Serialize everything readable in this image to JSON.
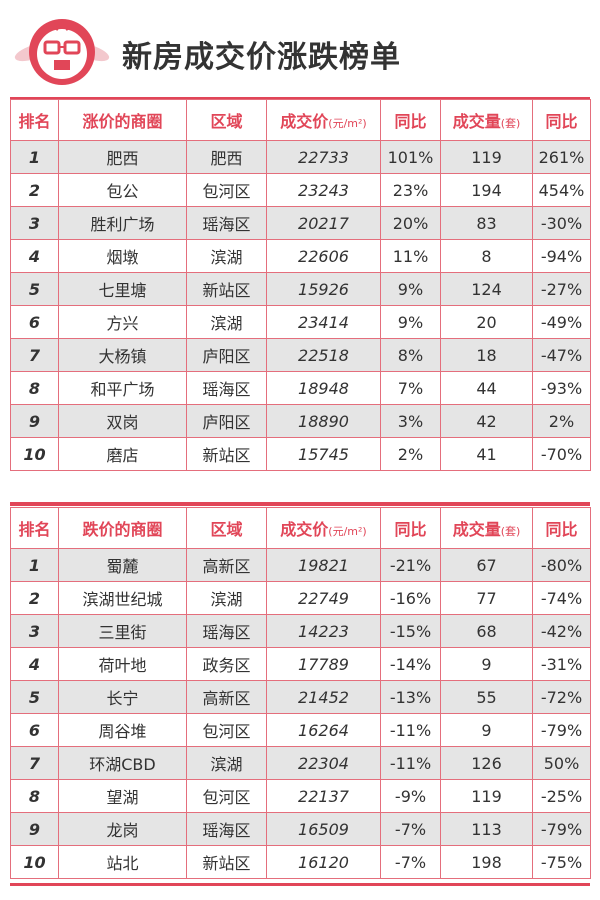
{
  "header": {
    "title": "新房成交价涨跌榜单"
  },
  "rise_table": {
    "columns": [
      "排名",
      "涨价的商圈",
      "区域",
      "成交价",
      "(元/m²)",
      "同比",
      "成交量",
      "(套)",
      "同比"
    ],
    "rows": [
      [
        "1",
        "肥西",
        "肥西",
        "22733",
        "101%",
        "119",
        "261%"
      ],
      [
        "2",
        "包公",
        "包河区",
        "23243",
        "23%",
        "194",
        "454%"
      ],
      [
        "3",
        "胜利广场",
        "瑶海区",
        "20217",
        "20%",
        "83",
        "-30%"
      ],
      [
        "4",
        "烟墩",
        "滨湖",
        "22606",
        "11%",
        "8",
        "-94%"
      ],
      [
        "5",
        "七里塘",
        "新站区",
        "15926",
        "9%",
        "124",
        "-27%"
      ],
      [
        "6",
        "方兴",
        "滨湖",
        "23414",
        "9%",
        "20",
        "-49%"
      ],
      [
        "7",
        "大杨镇",
        "庐阳区",
        "22518",
        "8%",
        "18",
        "-47%"
      ],
      [
        "8",
        "和平广场",
        "瑶海区",
        "18948",
        "7%",
        "44",
        "-93%"
      ],
      [
        "9",
        "双岗",
        "庐阳区",
        "18890",
        "3%",
        "42",
        "2%"
      ],
      [
        "10",
        "磨店",
        "新站区",
        "15745",
        "2%",
        "41",
        "-70%"
      ]
    ]
  },
  "fall_table": {
    "columns": [
      "排名",
      "跌价的商圈",
      "区域",
      "成交价",
      "(元/m²)",
      "同比",
      "成交量",
      "(套)",
      "同比"
    ],
    "rows": [
      [
        "1",
        "蜀麓",
        "高新区",
        "19821",
        "-21%",
        "67",
        "-80%"
      ],
      [
        "2",
        "滨湖世纪城",
        "滨湖",
        "22749",
        "-16%",
        "77",
        "-74%"
      ],
      [
        "3",
        "三里街",
        "瑶海区",
        "14223",
        "-15%",
        "68",
        "-42%"
      ],
      [
        "4",
        "荷叶地",
        "政务区",
        "17789",
        "-14%",
        "9",
        "-31%"
      ],
      [
        "5",
        "长宁",
        "高新区",
        "21452",
        "-13%",
        "55",
        "-72%"
      ],
      [
        "6",
        "周谷堆",
        "包河区",
        "16264",
        "-11%",
        "9",
        "-79%"
      ],
      [
        "7",
        "环湖CBD",
        "滨湖",
        "22304",
        "-11%",
        "126",
        "50%"
      ],
      [
        "8",
        "望湖",
        "包河区",
        "22137",
        "-9%",
        "119",
        "-25%"
      ],
      [
        "9",
        "龙岗",
        "瑶海区",
        "16509",
        "-7%",
        "113",
        "-79%"
      ],
      [
        "10",
        "站北",
        "新站区",
        "16120",
        "-7%",
        "198",
        "-75%"
      ]
    ]
  }
}
